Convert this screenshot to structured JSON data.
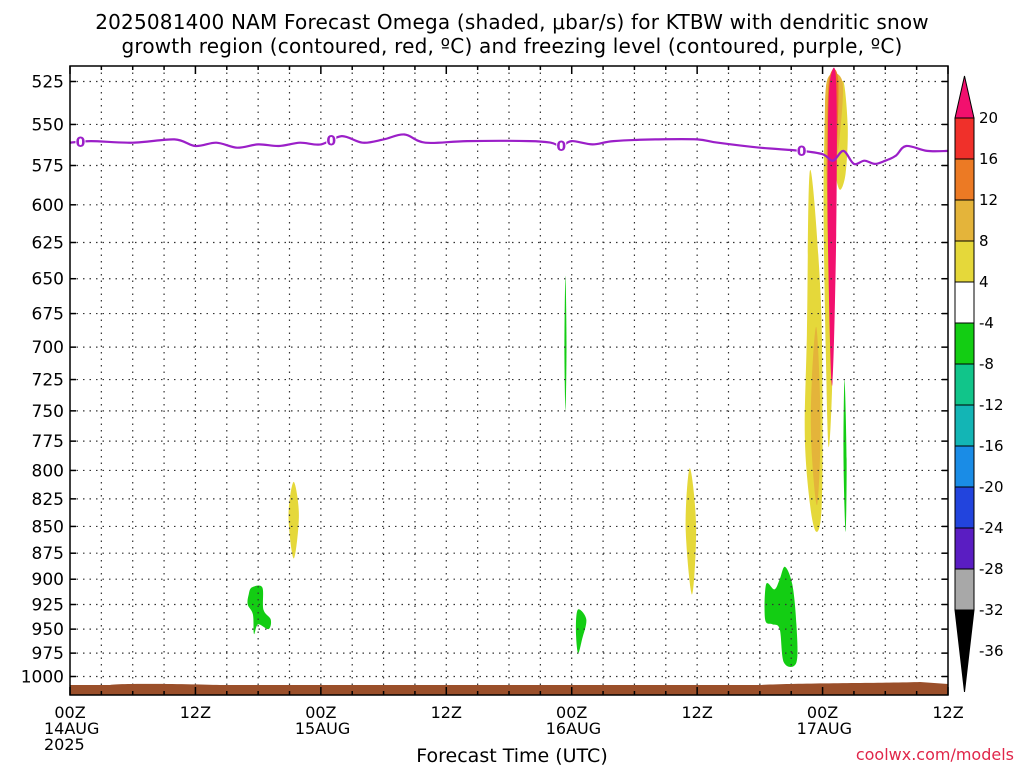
{
  "title_line1": "2025081400 NAM Forecast Omega (shaded, μbar/s) for KTBW with dendritic snow",
  "title_line2": "growth region (contoured, red, ºC) and freezing level (contoured, purple, ºC)",
  "xaxis_title": "Forecast Time (UTC)",
  "credit": "coolwx.com/models",
  "colors": {
    "freezing_line": "#9b1fc8",
    "ground": "#9a4f2a",
    "grid": "#333333"
  },
  "chart_data": {
    "type": "heatmap",
    "title": "2025081400 NAM Forecast Omega (shaded, μbar/s) for KTBW with dendritic snow growth region (contoured, red, ºC) and freezing level (contoured, purple, ºC)",
    "xlabel": "Forecast Time (UTC)",
    "ylabel": "",
    "x_unit": "forecast hour",
    "xlim": [
      0,
      84
    ],
    "y_unit": "hPa",
    "ylim": [
      1000,
      525
    ],
    "y_scale": "log",
    "grid": true,
    "yticks": [
      525,
      550,
      575,
      600,
      625,
      650,
      675,
      700,
      725,
      750,
      775,
      800,
      825,
      850,
      875,
      900,
      925,
      950,
      975,
      1000
    ],
    "xticks": [
      {
        "hour": 0,
        "lines": [
          "00Z",
          "14AUG",
          "2025"
        ]
      },
      {
        "hour": 12,
        "lines": [
          "12Z"
        ]
      },
      {
        "hour": 24,
        "lines": [
          "00Z",
          "15AUG"
        ]
      },
      {
        "hour": 36,
        "lines": [
          "12Z"
        ]
      },
      {
        "hour": 48,
        "lines": [
          "00Z",
          "16AUG"
        ]
      },
      {
        "hour": 60,
        "lines": [
          "12Z"
        ]
      },
      {
        "hour": 72,
        "lines": [
          "00Z",
          "17AUG"
        ]
      },
      {
        "hour": 84,
        "lines": [
          "12Z"
        ]
      }
    ],
    "colorbar": {
      "labels": [
        "20",
        "16",
        "12",
        "8",
        "4",
        "-4",
        "-8",
        "-12",
        "-16",
        "-20",
        "-24",
        "-28",
        "-32",
        "-36"
      ],
      "bins": [
        {
          "color": "#f2106e"
        },
        {
          "color": "#f0302a"
        },
        {
          "color": "#ec7a24"
        },
        {
          "color": "#e4b43a"
        },
        {
          "color": "#e5d83a"
        },
        {
          "color": "#ffffff"
        },
        {
          "color": "#13cd13"
        },
        {
          "color": "#11c58a"
        },
        {
          "color": "#13b5b5"
        },
        {
          "color": "#1a8ce6"
        },
        {
          "color": "#2244dd"
        },
        {
          "color": "#5a1dc2"
        },
        {
          "color": "#9b0fc0"
        },
        {
          "color": "#a8a8a8"
        }
      ]
    },
    "freezing_level": {
      "label": "0",
      "points": [
        [
          0,
          561
        ],
        [
          2,
          560
        ],
        [
          6,
          561
        ],
        [
          10,
          559
        ],
        [
          12,
          563
        ],
        [
          14,
          561
        ],
        [
          16,
          564
        ],
        [
          18,
          562
        ],
        [
          20,
          563
        ],
        [
          22,
          561
        ],
        [
          24,
          562
        ],
        [
          26,
          557
        ],
        [
          28,
          561
        ],
        [
          30,
          559
        ],
        [
          32,
          556
        ],
        [
          34,
          561
        ],
        [
          38,
          560
        ],
        [
          44,
          560
        ],
        [
          46,
          561
        ],
        [
          47,
          563
        ],
        [
          48,
          560
        ],
        [
          50,
          562
        ],
        [
          52,
          560
        ],
        [
          56,
          559
        ],
        [
          60,
          559
        ],
        [
          62,
          561
        ],
        [
          66,
          564
        ],
        [
          70,
          566
        ],
        [
          72,
          568
        ],
        [
          73,
          572
        ],
        [
          74,
          566
        ],
        [
          75,
          574
        ],
        [
          76,
          572
        ],
        [
          77,
          574
        ],
        [
          78,
          572
        ],
        [
          79,
          569
        ],
        [
          80,
          563
        ],
        [
          82,
          566
        ],
        [
          84,
          566
        ]
      ],
      "label_hours": [
        1,
        25,
        47,
        70
      ]
    },
    "omega_regions": [
      {
        "value": 6,
        "points": [
          [
            21.4,
            810
          ],
          [
            21.9,
            840
          ],
          [
            21.4,
            880
          ],
          [
            20.9,
            840
          ]
        ]
      },
      {
        "value": 6,
        "points": [
          [
            59.3,
            798
          ],
          [
            59.9,
            850
          ],
          [
            59.5,
            915
          ],
          [
            58.9,
            850
          ]
        ]
      },
      {
        "value": 6,
        "points": [
          [
            70.8,
            578
          ],
          [
            71.8,
            660
          ],
          [
            72.0,
            760
          ],
          [
            71.9,
            835
          ],
          [
            71.4,
            855
          ],
          [
            70.8,
            830
          ],
          [
            70.3,
            770
          ],
          [
            70.5,
            690
          ]
        ]
      },
      {
        "value": 10,
        "points": [
          [
            71.4,
            685
          ],
          [
            71.8,
            760
          ],
          [
            71.5,
            830
          ],
          [
            71.0,
            790
          ],
          [
            70.9,
            740
          ]
        ]
      },
      {
        "value": 6,
        "points": [
          [
            72.4,
            525
          ],
          [
            73.0,
            570
          ],
          [
            73.0,
            700
          ],
          [
            72.6,
            780
          ],
          [
            72.3,
            700
          ],
          [
            72.1,
            590
          ]
        ]
      },
      {
        "value": 6,
        "points": [
          [
            73.9,
            525
          ],
          [
            74.4,
            550
          ],
          [
            74.2,
            580
          ],
          [
            73.6,
            590
          ],
          [
            73.2,
            570
          ]
        ]
      },
      {
        "value": 10,
        "points": [
          [
            72.4,
            525
          ],
          [
            73.9,
            525
          ],
          [
            73.6,
            560
          ],
          [
            73.1,
            580
          ],
          [
            72.8,
            625
          ],
          [
            72.3,
            570
          ]
        ]
      },
      {
        "value": 14,
        "points": [
          [
            72.6,
            525
          ],
          [
            73.5,
            525
          ],
          [
            73.2,
            590
          ],
          [
            72.9,
            620
          ],
          [
            72.5,
            580
          ]
        ]
      },
      {
        "value": 22,
        "points": [
          [
            72.7,
            525
          ],
          [
            73.3,
            525
          ],
          [
            73.3,
            620
          ],
          [
            72.9,
            730
          ],
          [
            72.5,
            620
          ],
          [
            72.5,
            560
          ]
        ]
      },
      {
        "value": -6,
        "points": [
          [
            47.4,
            648
          ],
          [
            47.5,
            700
          ],
          [
            47.4,
            750
          ],
          [
            47.3,
            700
          ]
        ]
      },
      {
        "value": -6,
        "points": [
          [
            74.1,
            725
          ],
          [
            74.3,
            790
          ],
          [
            74.2,
            855
          ],
          [
            74.0,
            790
          ]
        ]
      },
      {
        "value": -6,
        "points": [
          [
            17.4,
            908
          ],
          [
            18.4,
            908
          ],
          [
            18.5,
            930
          ],
          [
            19.2,
            940
          ],
          [
            19.0,
            950
          ],
          [
            18.0,
            945
          ],
          [
            17.6,
            955
          ],
          [
            17.5,
            935
          ],
          [
            17.0,
            925
          ],
          [
            17.1,
            915
          ]
        ]
      },
      {
        "value": -6,
        "points": [
          [
            48.6,
            930
          ],
          [
            49.4,
            940
          ],
          [
            49.0,
            960
          ],
          [
            48.6,
            975
          ],
          [
            48.4,
            950
          ]
        ]
      },
      {
        "value": -6,
        "points": [
          [
            66.6,
            905
          ],
          [
            67.4,
            910
          ],
          [
            67.9,
            900
          ],
          [
            68.4,
            888
          ],
          [
            69.1,
            905
          ],
          [
            69.5,
            945
          ],
          [
            69.5,
            985
          ],
          [
            68.3,
            985
          ],
          [
            67.9,
            950
          ],
          [
            67.2,
            945
          ],
          [
            66.5,
            940
          ]
        ]
      }
    ]
  }
}
